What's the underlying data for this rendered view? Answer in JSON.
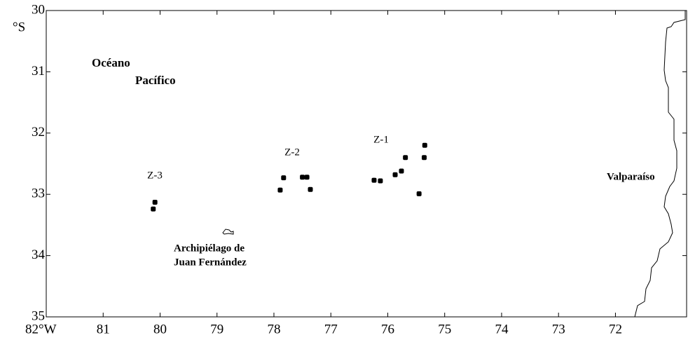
{
  "chart_data": {
    "type": "scatter",
    "y_unit": "°S",
    "xlim": [
      82,
      70.75
    ],
    "ylim": [
      30,
      35
    ],
    "xticks": [
      {
        "value": 82,
        "label": "82°W"
      },
      81,
      80,
      79,
      78,
      77,
      76,
      75,
      74,
      73,
      72
    ],
    "yticks": [
      30,
      31,
      32,
      33,
      34,
      35
    ],
    "color": "#000000",
    "x": [
      80.09,
      80.12,
      77.89,
      77.83,
      77.5,
      77.42,
      77.36,
      76.24,
      76.13,
      75.87,
      75.76,
      75.69,
      75.35,
      75.36,
      75.45
    ],
    "values": [
      33.13,
      33.24,
      32.93,
      32.73,
      32.72,
      32.72,
      32.92,
      32.77,
      32.78,
      32.68,
      32.62,
      32.4,
      32.2,
      32.4,
      32.99
    ],
    "annotations": [
      "Z-1",
      "Z-2",
      "Z-3",
      "Océano",
      "Pacífico",
      "Archipiélago de",
      "Juan Fernández",
      "Valparaíso"
    ]
  }
}
